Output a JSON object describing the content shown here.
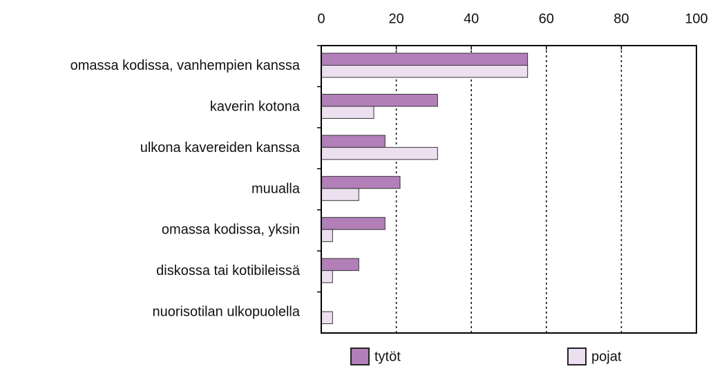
{
  "chart_data": {
    "type": "barh",
    "categories": [
      "omassa kodissa, vanhempien kanssa",
      "kaverin kotona",
      "ulkona kavereiden kanssa",
      "muualla",
      "omassa kodissa, yksin",
      "diskossa tai kotibileissä",
      "nuorisotilan ulkopuolella"
    ],
    "series": [
      {
        "name": "tytöt",
        "color": "#b27fb9",
        "values": [
          55,
          31,
          17,
          21,
          17,
          10,
          0
        ]
      },
      {
        "name": "pojat",
        "color": "#ecdff0",
        "values": [
          55,
          14,
          31,
          10,
          3,
          3,
          3
        ]
      }
    ],
    "xlim": [
      0,
      100
    ],
    "xticks": [
      0,
      20,
      40,
      60,
      80,
      100
    ],
    "grid": true,
    "legend": "bottom"
  }
}
